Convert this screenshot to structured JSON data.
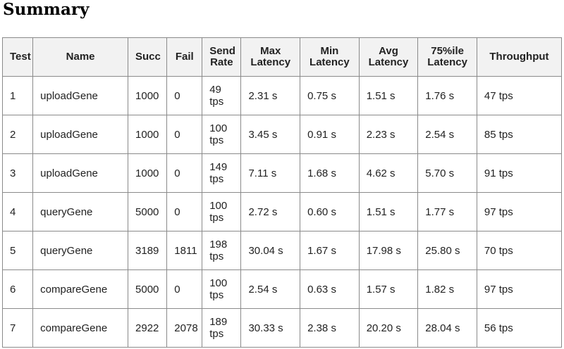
{
  "title": "Summary",
  "columns": [
    "Test",
    "Name",
    "Succ",
    "Fail",
    "Send Rate",
    "Max Latency",
    "Min Latency",
    "Avg Latency",
    "75%ile Latency",
    "Throughput"
  ],
  "rows": [
    [
      "1",
      "uploadGene",
      "1000",
      "0",
      "49 tps",
      "2.31 s",
      "0.75 s",
      "1.51 s",
      "1.76 s",
      "47 tps"
    ],
    [
      "2",
      "uploadGene",
      "1000",
      "0",
      "100 tps",
      "3.45 s",
      "0.91 s",
      "2.23 s",
      "2.54 s",
      "85 tps"
    ],
    [
      "3",
      "uploadGene",
      "1000",
      "0",
      "149 tps",
      "7.11 s",
      "1.68 s",
      "4.62 s",
      "5.70 s",
      "91 tps"
    ],
    [
      "4",
      "queryGene",
      "5000",
      "0",
      "100 tps",
      "2.72 s",
      "0.60 s",
      "1.51 s",
      "1.77 s",
      "97 tps"
    ],
    [
      "5",
      "queryGene",
      "3189",
      "1811",
      "198 tps",
      "30.04 s",
      "1.67 s",
      "17.98 s",
      "25.80 s",
      "70 tps"
    ],
    [
      "6",
      "compareGene",
      "5000",
      "0",
      "100 tps",
      "2.54 s",
      "0.63 s",
      "1.57 s",
      "1.82 s",
      "97 tps"
    ],
    [
      "7",
      "compareGene",
      "2922",
      "2078",
      "189 tps",
      "30.33 s",
      "2.38 s",
      "20.20 s",
      "28.04 s",
      "56 tps"
    ]
  ],
  "colors": {
    "header_bg": "#f2f2f2",
    "border": "#8a8a8a",
    "text": "#222222"
  }
}
